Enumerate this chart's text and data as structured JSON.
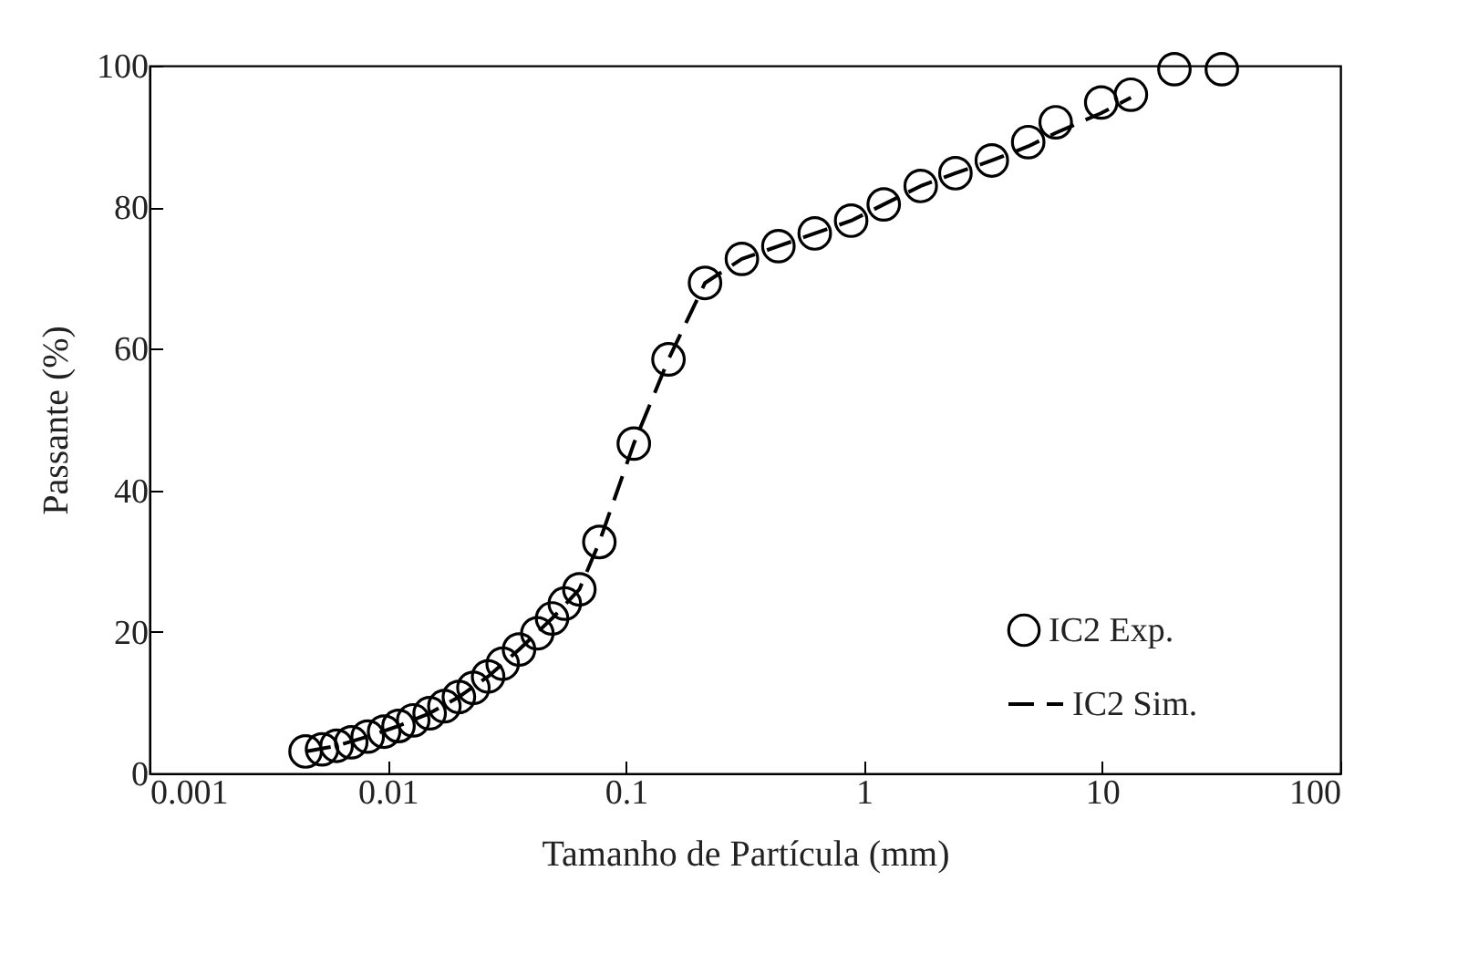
{
  "chart_data": {
    "type": "scatter",
    "xlabel": "Tamanho de Partícula (mm)",
    "ylabel": "Passante (%)",
    "log": "x",
    "xlim": [
      0.001,
      100
    ],
    "xticks": [
      0.001,
      0.01,
      0.1,
      1,
      10,
      100
    ],
    "ylim": [
      0,
      100
    ],
    "yticks": [
      0,
      20,
      40,
      60,
      80,
      100
    ],
    "grid": false,
    "legend": "bottom right",
    "series": [
      {
        "name": "IC2 Exp.",
        "marker": "circle",
        "color": "#000000",
        "x": [
          0.00452,
          0.0053,
          0.0061,
          0.00703,
          0.00824,
          0.00966,
          0.0111,
          0.0128,
          0.015,
          0.0173,
          0.0199,
          0.0229,
          0.0264,
          0.0304,
          0.0356,
          0.0425,
          0.049,
          0.0554,
          0.0638,
          0.0774,
          0.108,
          0.151,
          0.215,
          0.307,
          0.437,
          0.621,
          0.883,
          1.21,
          1.73,
          2.42,
          3.44,
          4.89,
          6.38,
          9.91,
          13.2,
          20.1,
          31.8
        ],
        "values": [
          3.1,
          3.4,
          3.9,
          4.4,
          5.2,
          5.9,
          6.7,
          7.5,
          8.5,
          9.5,
          10.8,
          12.1,
          13.7,
          15.5,
          17.5,
          19.8,
          21.9,
          24.0,
          26.0,
          32.7,
          46.6,
          58.5,
          69.3,
          72.7,
          74.5,
          76.3,
          78.1,
          80.4,
          83.0,
          84.8,
          86.6,
          89.2,
          92.0,
          94.8,
          95.9,
          99.5,
          99.5
        ]
      },
      {
        "name": "IC2 Sim.",
        "type": "line",
        "line_style": "dashed",
        "color": "#000000",
        "x": [
          0.00452,
          0.0061,
          0.00824,
          0.0111,
          0.015,
          0.0199,
          0.0264,
          0.0356,
          0.049,
          0.0638,
          0.0774,
          0.108,
          0.151,
          0.215,
          0.307,
          0.437,
          0.621,
          0.883,
          1.21,
          1.73,
          2.42,
          3.44,
          4.89,
          6.38,
          9.91,
          13.2
        ],
        "values": [
          3.1,
          3.9,
          5.2,
          6.7,
          8.5,
          10.8,
          13.7,
          17.5,
          21.9,
          26.0,
          32.7,
          46.6,
          58.5,
          69.3,
          72.7,
          74.5,
          76.3,
          78.1,
          80.4,
          83.0,
          84.8,
          86.6,
          88.6,
          90.5,
          93.3,
          95.5
        ]
      }
    ]
  }
}
